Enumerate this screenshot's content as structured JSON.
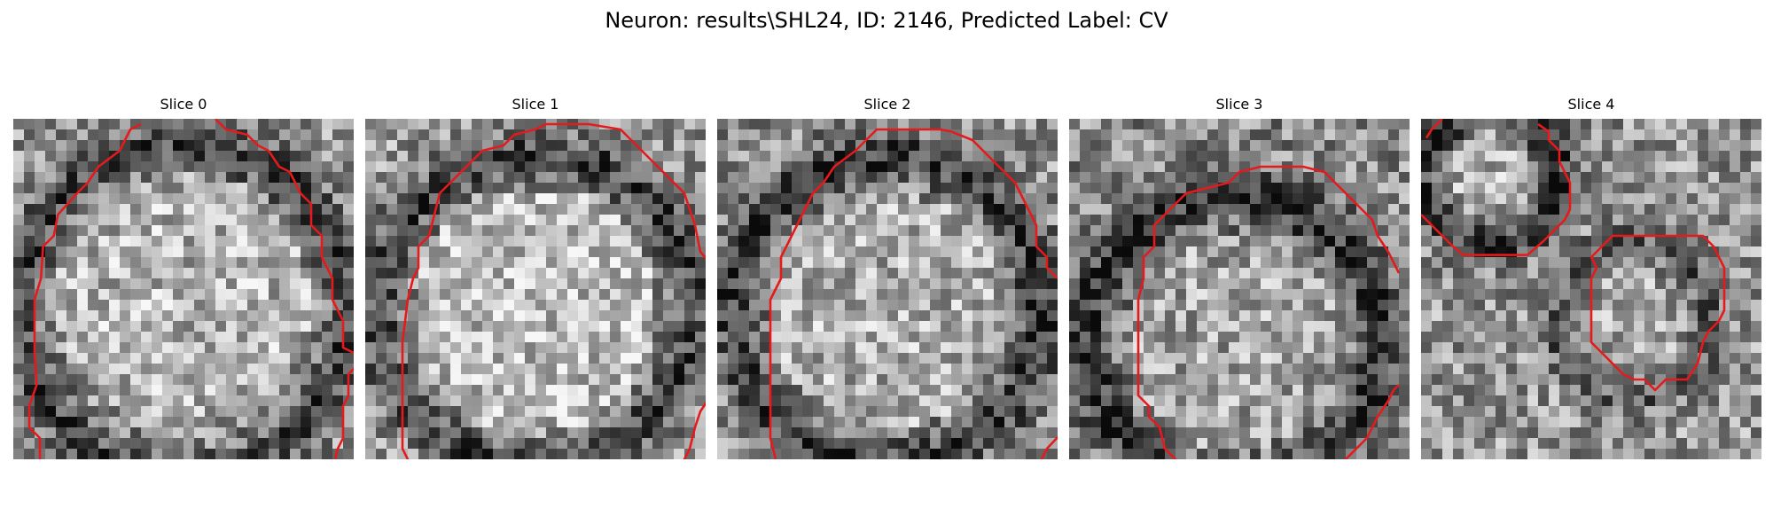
{
  "figure": {
    "title": "Neuron: results\\SHL24, ID: 2146, Predicted Label: CV"
  },
  "style": {
    "contour_color": "#e41a1c"
  },
  "panels": [
    {
      "label": "Slice 0",
      "seed": 11,
      "bias": 0.02
    },
    {
      "label": "Slice 1",
      "seed": 23,
      "bias": 0.04
    },
    {
      "label": "Slice 2",
      "seed": 37,
      "bias": 0.0
    },
    {
      "label": "Slice 3",
      "seed": 41,
      "bias": -0.02
    },
    {
      "label": "Slice 4",
      "seed": 59,
      "bias": 0.03
    }
  ]
}
